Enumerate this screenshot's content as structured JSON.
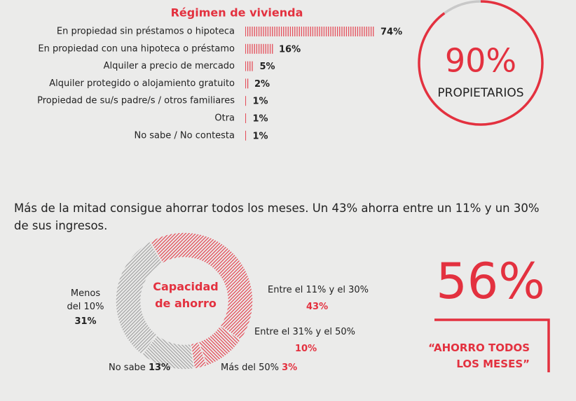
{
  "chart_data": [
    {
      "type": "bar",
      "title": "Régimen de vivienda",
      "categories": [
        "En propiedad sin préstamos o hipoteca",
        "En propiedad con una hipoteca o préstamo",
        "Alquiler a precio de mercado",
        "Alquiler protegido o alojamiento gratuito",
        "Propiedad de su/s padre/s / otros familiares",
        "Otra",
        "No sabe / No contesta"
      ],
      "values": [
        74,
        16,
        5,
        2,
        1,
        1,
        1
      ],
      "value_labels": [
        "74%",
        "16%",
        "5%",
        "2%",
        "1%",
        "1%",
        "1%"
      ],
      "color": "#e3313f"
    },
    {
      "type": "pie",
      "title": "Capacidad de ahorro",
      "categories": [
        "Entre el 11% y el 30%",
        "Entre el 31% y el 50%",
        "Más del 50%",
        "No sabe",
        "Menos del 10%"
      ],
      "values": [
        43,
        10,
        3,
        13,
        31
      ],
      "value_labels": [
        "43%",
        "10%",
        "3%",
        "13%",
        "31%"
      ],
      "colors": [
        "#e3313f",
        "#e3313f",
        "#e3313f",
        "#9a9a9a",
        "#9a9a9a"
      ]
    }
  ],
  "text": "Más de la mitad consigue ahorrar todos los meses. Un 43% ahorra entre un 11% y un 30% de sus ingresos.",
  "stats": [
    {
      "value": 90,
      "label": "90%",
      "caption": "PROPIETARIOS"
    },
    {
      "value": 56,
      "label": "56%",
      "caption": "“AHORRO TODOS LOS MESES”"
    }
  ]
}
